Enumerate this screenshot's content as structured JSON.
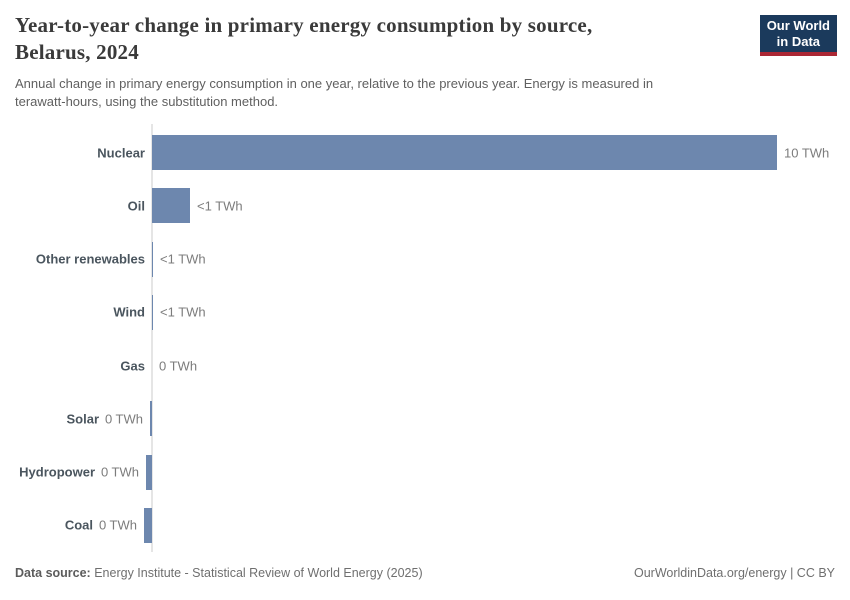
{
  "header": {
    "title_lines": [
      "Year-to-year change in primary energy consumption by source,",
      "Belarus, 2024"
    ],
    "subtitle_lines": [
      "Annual change in primary energy consumption in one year, relative to the previous year. Energy is measured in",
      "terawatt-hours, using the substitution method."
    ],
    "logo": {
      "line1": "Our World",
      "line2": "in Data"
    }
  },
  "chart_data": {
    "type": "bar",
    "orientation": "horizontal",
    "title": "Year-to-year change in primary energy consumption by source, Belarus, 2024",
    "unit": "TWh",
    "categories": [
      "Nuclear",
      "Oil",
      "Other renewables",
      "Wind",
      "Gas",
      "Solar",
      "Hydropower",
      "Coal"
    ],
    "values": [
      10,
      0.6,
      0.02,
      0.02,
      0,
      -0.03,
      -0.1,
      -0.13
    ],
    "value_labels": [
      "10 TWh",
      "<1 TWh",
      "<1 TWh",
      "<1 TWh",
      "0 TWh",
      "0 TWh",
      "0 TWh",
      "0 TWh"
    ],
    "xlim": [
      -0.2,
      10
    ],
    "grid": false,
    "legend": false,
    "bar_color": "#6d87ae",
    "axis_color": "#e5e5e5"
  },
  "footer": {
    "datasource_label": "Data source:",
    "datasource_text": "Energy Institute - Statistical Review of World Energy (2025)",
    "credit": "OurWorldinData.org/energy | CC BY"
  }
}
